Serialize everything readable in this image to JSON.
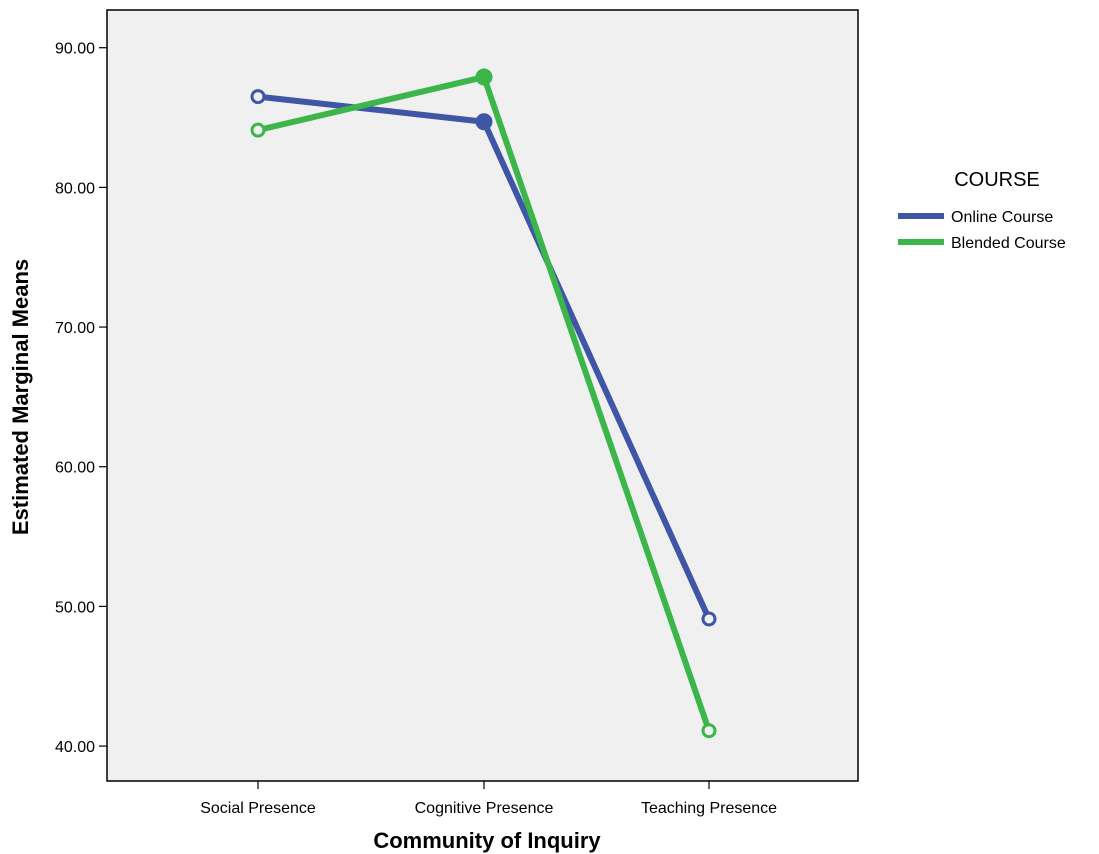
{
  "chart_data": {
    "type": "line",
    "categories": [
      "Social Presence",
      "Cognitive Presence",
      "Teaching Presence"
    ],
    "series": [
      {
        "name": "Online Course",
        "values": [
          86.5,
          84.7,
          49.1
        ],
        "color": "#3f55a5",
        "markers": [
          "open-circle",
          "filled-circle",
          "open-circle"
        ]
      },
      {
        "name": "Blended Course",
        "values": [
          84.1,
          87.9,
          41.1
        ],
        "color": "#3cb54a",
        "markers": [
          "open-circle",
          "filled-circle",
          "open-circle"
        ]
      }
    ],
    "xlabel": "Community of Inquiry",
    "ylabel": "Estimated Marginal Means",
    "yticks": [
      "40.00",
      "50.00",
      "60.00",
      "70.00",
      "80.00",
      "90.00"
    ],
    "ylim": [
      37.5,
      92.7
    ],
    "legend": {
      "title": "COURSE",
      "position": "right"
    },
    "plot_background": "#f0f0f0",
    "grid": false
  }
}
